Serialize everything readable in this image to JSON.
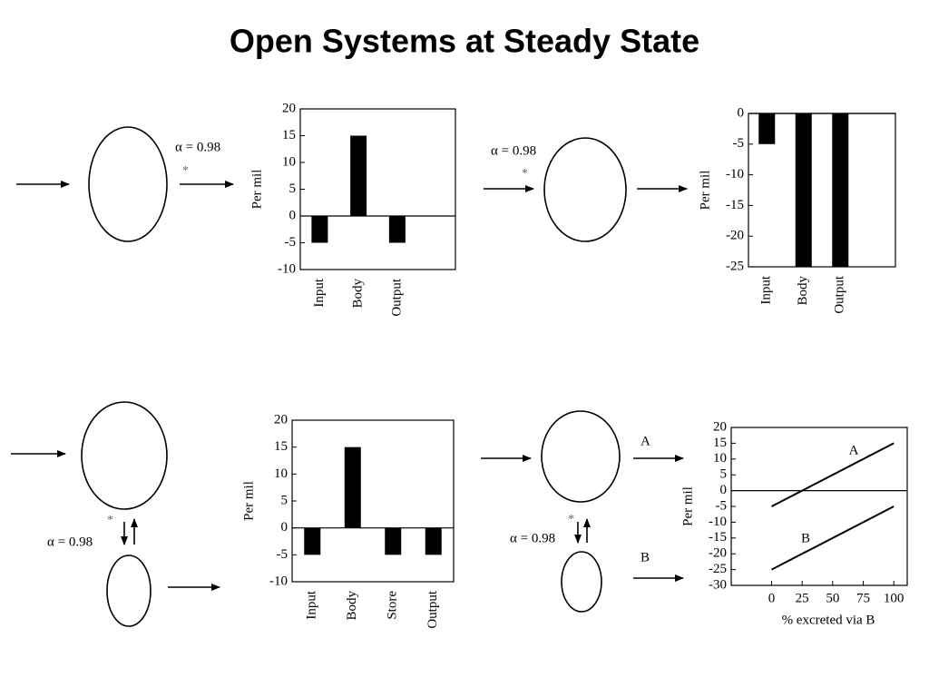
{
  "title": "Open Systems at Steady State",
  "diagrams": [
    {
      "alpha": "α = 0.98",
      "star": "*"
    },
    {
      "alpha": "α = 0.98",
      "star": "*"
    },
    {
      "alpha": "α = 0.98",
      "star": "*"
    },
    {
      "alpha": "α = 0.98",
      "star": "*",
      "outputs": [
        "A",
        "B"
      ]
    }
  ],
  "chart_data": [
    {
      "type": "bar",
      "y_label": "Per mil",
      "categories": [
        "Input",
        "Body",
        "Output"
      ],
      "values": [
        -5,
        15,
        -5
      ],
      "color": "#000000",
      "ylim": [
        -10,
        20
      ],
      "yticks": [
        -10,
        -5,
        0,
        5,
        10,
        15,
        20
      ]
    },
    {
      "type": "bar",
      "y_label": "Per mil",
      "categories": [
        "Input",
        "Body",
        "Output"
      ],
      "values": [
        -5,
        -25,
        -25
      ],
      "color": "#000000",
      "ylim": [
        -25,
        0
      ],
      "yticks": [
        -25,
        -20,
        -15,
        -10,
        -5,
        0
      ]
    },
    {
      "type": "bar",
      "y_label": "Per mil",
      "categories": [
        "Input",
        "Body",
        "Store",
        "Output"
      ],
      "values": [
        -5,
        15,
        -5,
        -5
      ],
      "color": "#000000",
      "ylim": [
        -10,
        20
      ],
      "yticks": [
        -10,
        -5,
        0,
        5,
        10,
        15,
        20
      ]
    },
    {
      "type": "line",
      "y_label": "Per mil",
      "x_label": "% excreted via B",
      "x": [
        0,
        100
      ],
      "series": [
        {
          "name": "A",
          "color": "#000000",
          "values": [
            -5,
            15
          ]
        },
        {
          "name": "B",
          "color": "#000000",
          "values": [
            -25,
            -5
          ]
        }
      ],
      "xlim": [
        -33,
        111
      ],
      "xticks": [
        0,
        25,
        50,
        75,
        100
      ],
      "ylim": [
        -30,
        20
      ],
      "yticks": [
        -30,
        -25,
        -20,
        -15,
        -10,
        -5,
        0,
        5,
        10,
        15,
        20
      ]
    }
  ]
}
